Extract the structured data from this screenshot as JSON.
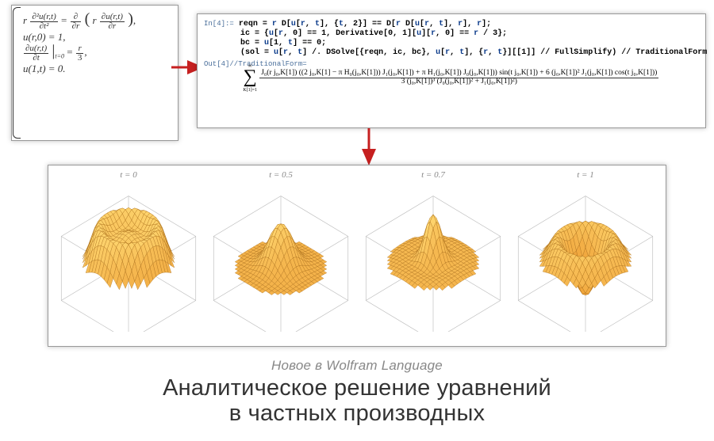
{
  "colors": {
    "background": "#ffffff",
    "box_border": "#999999",
    "text_dark": "#333333",
    "text_muted": "#888888",
    "code_label": "#4a6f9b",
    "code_symbol": "#0a3a8a",
    "surface_light": "#ffd973",
    "surface_dark": "#e88a1f",
    "mesh": "#a86b18",
    "arrow": "#c62020",
    "cube_edge": "#b8b8b8"
  },
  "equations": {
    "line1_lhs_coef": "r",
    "line1_num": "∂²u(r,t)",
    "line1_den": "∂t²",
    "line1_rhs_outer_num": "∂",
    "line1_rhs_outer_den": "∂r",
    "line1_rhs_inner_coef": "r",
    "line1_rhs_inner_num": "∂u(r,t)",
    "line1_rhs_inner_den": "∂r",
    "line2": "u(r,0) = 1,",
    "line3_num": "∂u(r,t)",
    "line3_den": "∂t",
    "line3_sub": "t=0",
    "line3_rhs_num": "r",
    "line3_rhs_den": "3",
    "line4": "u(1,t) = 0."
  },
  "code": {
    "in_label": "In[4]:=",
    "out_label": "Out[4]//TraditionalForm=",
    "line1_a": "reqn = ",
    "line1_b": "r",
    "line1_c": " D[",
    "line1_d": "u",
    "line1_e": "[",
    "line1_f": "r",
    "line1_g": ", ",
    "line1_h": "t",
    "line1_i": "], {",
    "line1_j": "t",
    "line1_k": ", 2}] == D[",
    "line1_l": "r",
    "line1_m": " D[",
    "line1_n": "u",
    "line1_o": "[",
    "line1_p": "r",
    "line1_q": ", ",
    "line1_r": "t",
    "line1_s": "], ",
    "line1_t": "r",
    "line1_u": "], ",
    "line1_v": "r",
    "line1_w": "];",
    "line2_a": "ic = {",
    "line2_b": "u",
    "line2_c": "[",
    "line2_d": "r",
    "line2_e": ", 0] == 1, Derivative[0, 1][",
    "line2_f": "u",
    "line2_g": "][",
    "line2_h": "r",
    "line2_i": ", 0] == ",
    "line2_j": "r",
    "line2_k": " / 3};",
    "line3_a": "bc = ",
    "line3_b": "u",
    "line3_c": "[1, ",
    "line3_d": "t",
    "line3_e": "] == 0;",
    "line4_a": "(sol = ",
    "line4_b": "u",
    "line4_c": "[",
    "line4_d": "r",
    "line4_e": ", ",
    "line4_f": "t",
    "line4_g": "] /. DSolve[{reqn, ic, bc}, ",
    "line4_h": "u",
    "line4_i": "[",
    "line4_j": "r",
    "line4_k": ", ",
    "line4_l": "t",
    "line4_m": "], {",
    "line4_n": "r",
    "line4_o": ", ",
    "line4_p": "t",
    "line4_q": "}][[1]] // FullSimplify) // TraditionalForm",
    "series_top": "∞",
    "series_bot": "K[1]=1",
    "series_num": "J₀(r j₀,K[1]) ((2 j₀,K[1] − π H₀(j₀,K[1])) J₁(j₀,K[1]) + π H₁(j₀,K[1]) J₀(j₀,K[1])) sin(t j₀,K[1]) + 6 (j₀,K[1])² J₁(j₀,K[1]) cos(t j₀,K[1]))",
    "series_den": "3 (j₀,K[1])³ (J₀(j₀,K[1])² + J₁(j₀,K[1])²)"
  },
  "plots": [
    {
      "title": "t = 0"
    },
    {
      "title": "t = 0.5"
    },
    {
      "title": "t = 0.7"
    },
    {
      "title": "t = 1"
    }
  ],
  "captions": {
    "subtitle": "Новое в Wolfram Language",
    "title_line1": "Аналитическое решение уравнений",
    "title_line2": "в частных производных"
  }
}
